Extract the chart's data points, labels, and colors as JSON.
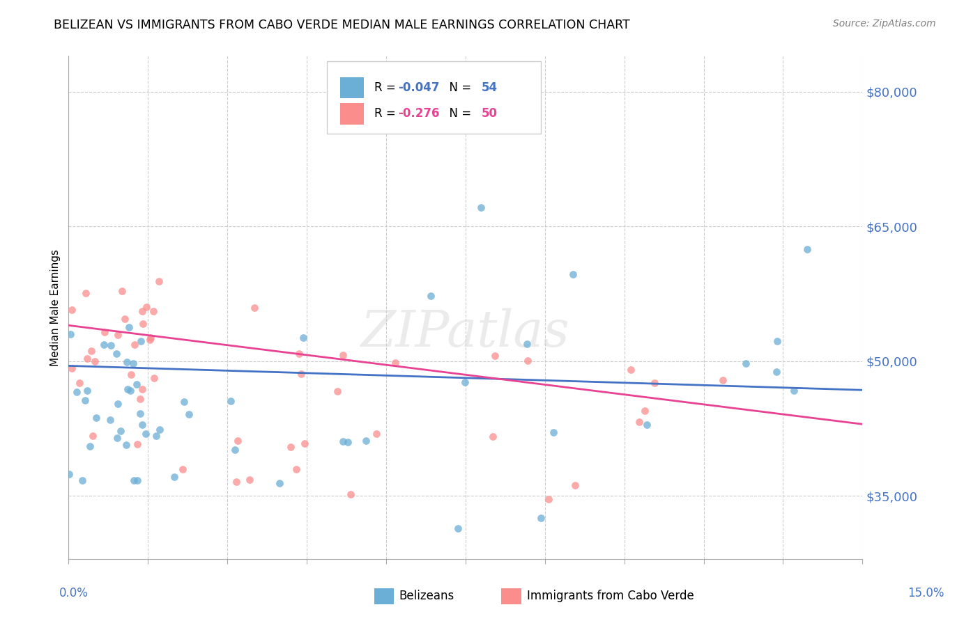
{
  "title": "BELIZEAN VS IMMIGRANTS FROM CABO VERDE MEDIAN MALE EARNINGS CORRELATION CHART",
  "source": "Source: ZipAtlas.com",
  "ylabel": "Median Male Earnings",
  "y_ticks": [
    35000,
    50000,
    65000,
    80000
  ],
  "y_tick_labels": [
    "$35,000",
    "$50,000",
    "$65,000",
    "$80,000"
  ],
  "x_min": 0.0,
  "x_max": 0.15,
  "y_min": 28000,
  "y_max": 84000,
  "color_blue": "#6baed6",
  "color_pink": "#fc8d8d",
  "color_blue_line": "#4472c4",
  "color_pink_line": "#e84393",
  "blue_line_x": [
    0.0,
    0.15
  ],
  "blue_line_y": [
    49500,
    46800
  ],
  "pink_line_x": [
    0.0,
    0.15
  ],
  "pink_line_y": [
    54000,
    43000
  ],
  "watermark": "ZIPatlas",
  "r1_val": "-0.047",
  "n1_val": "54",
  "r2_val": "-0.276",
  "n2_val": "50"
}
